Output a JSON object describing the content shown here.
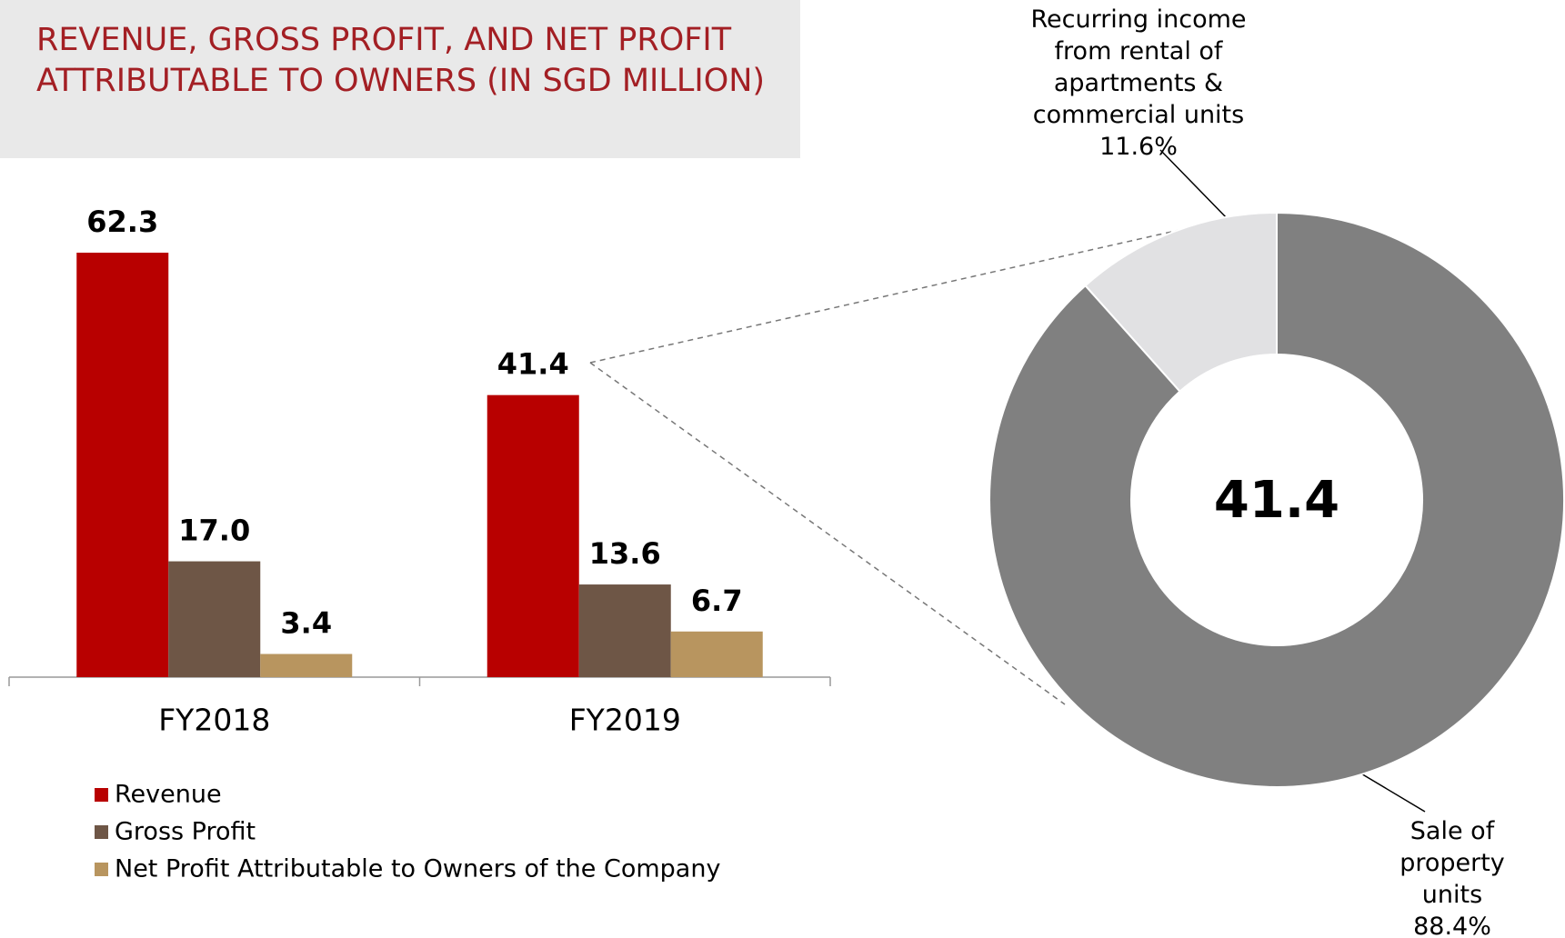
{
  "chart_data": [
    {
      "type": "bar",
      "title": "REVENUE, GROSS PROFIT, AND NET PROFIT ATTRIBUTABLE TO OWNERS (IN SGD MILLION)",
      "categories": [
        "FY2018",
        "FY2019"
      ],
      "series": [
        {
          "name": "Revenue",
          "color": "#b80000",
          "values": [
            62.3,
            41.4
          ],
          "value_labels": [
            "62.3",
            "41.4"
          ]
        },
        {
          "name": "Gross Profit",
          "color": "#6e5646",
          "values": [
            17.0,
            13.6
          ],
          "value_labels": [
            "17.0",
            "13.6"
          ]
        },
        {
          "name": "Net Profit Attributable to Owners of the Company",
          "color": "#b8955f",
          "values": [
            3.4,
            6.7
          ],
          "value_labels": [
            "3.4",
            "6.7"
          ]
        }
      ],
      "legend": "bottom-left"
    },
    {
      "type": "pie",
      "total": 41.4,
      "categories": [
        "Recurring income from rental of apartments & commercial units",
        "Sale of property units"
      ],
      "values": [
        11.6,
        88.4
      ],
      "value_labels": [
        "11.6%",
        "88.4%"
      ],
      "colors": [
        "#e1e1e3",
        "#808080"
      ]
    }
  ]
}
